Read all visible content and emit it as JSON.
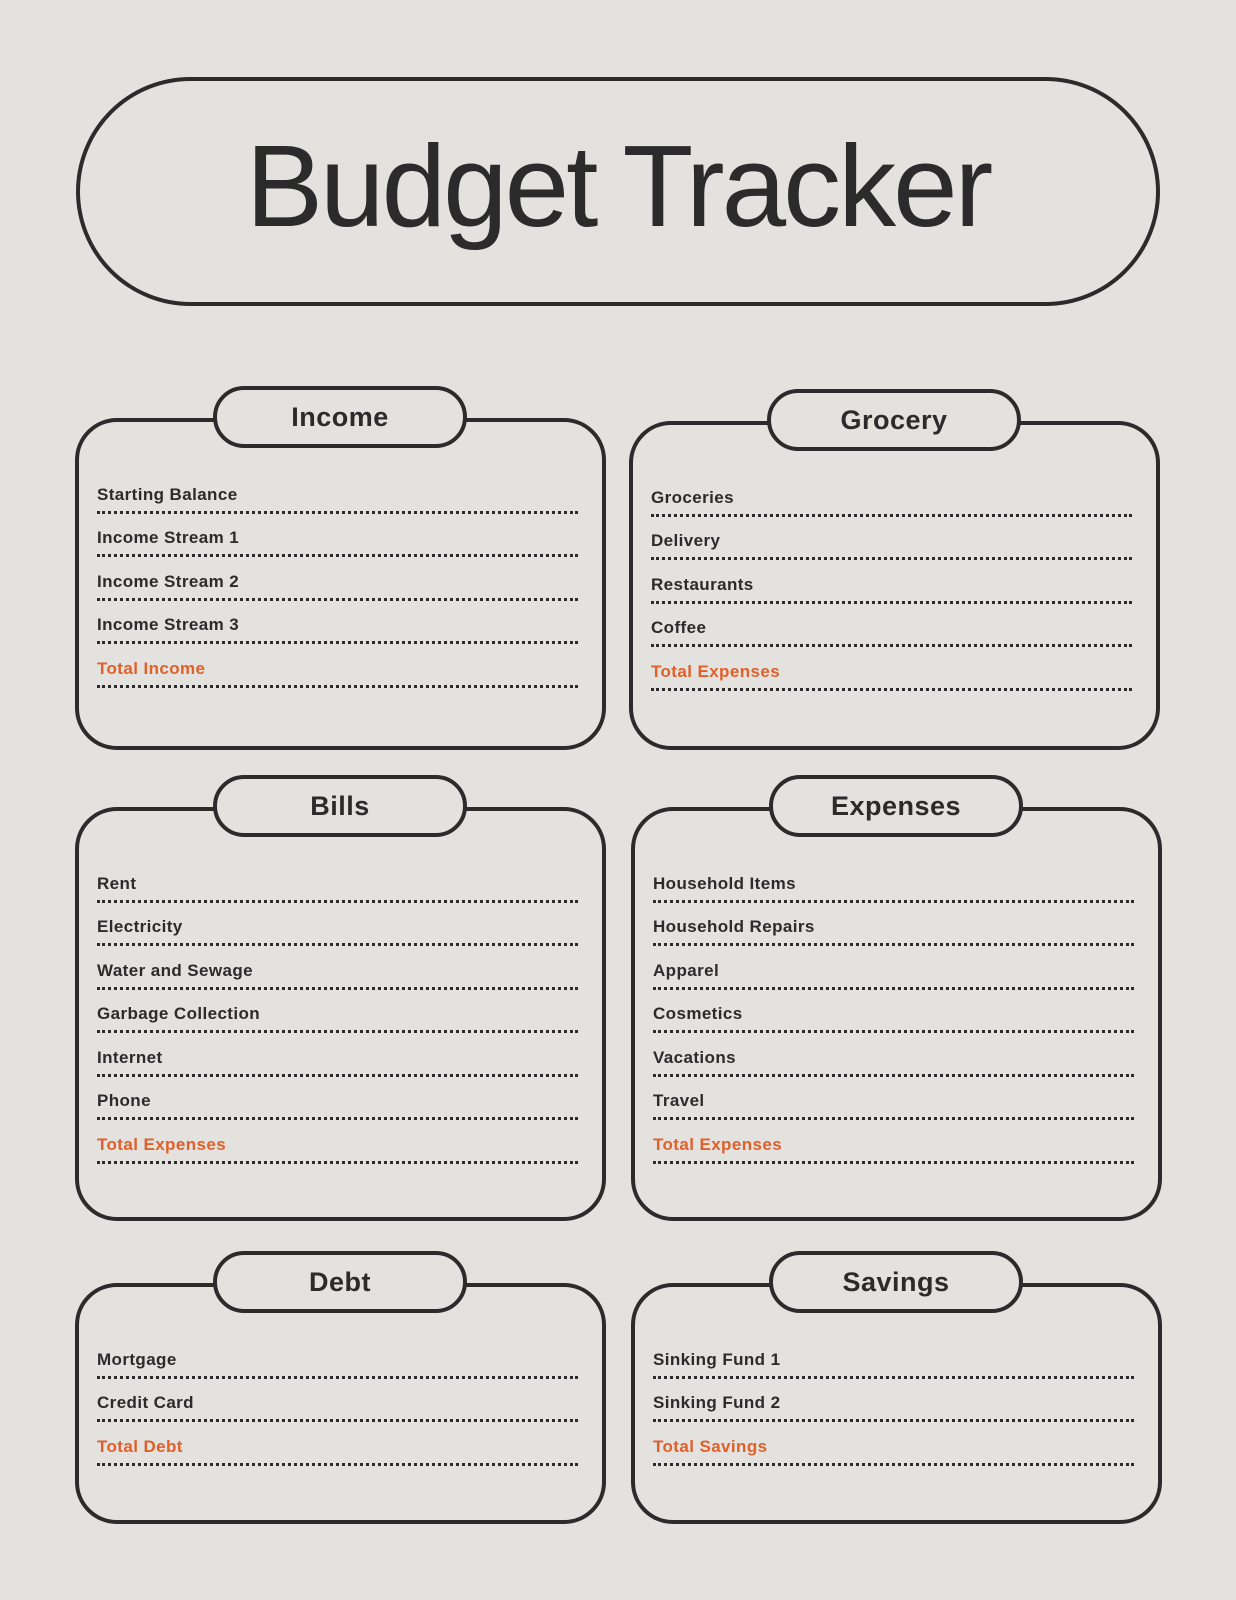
{
  "title": "Budget Tracker",
  "colors": {
    "background": "#e4e2de",
    "ink": "#2b2b2b",
    "accent": "#e0602a"
  },
  "sections": {
    "income": {
      "heading": "Income",
      "items": [
        "Starting Balance",
        "Income Stream 1",
        "Income Stream 2",
        "Income Stream 3"
      ],
      "total": "Total Income"
    },
    "grocery": {
      "heading": "Grocery",
      "items": [
        "Groceries",
        "Delivery",
        "Restaurants",
        "Coffee"
      ],
      "total": "Total Expenses"
    },
    "bills": {
      "heading": "Bills",
      "items": [
        "Rent",
        "Electricity",
        "Water and Sewage",
        "Garbage Collection",
        "Internet",
        "Phone"
      ],
      "total": "Total Expenses"
    },
    "expenses": {
      "heading": "Expenses",
      "items": [
        "Household Items",
        "Household Repairs",
        "Apparel",
        "Cosmetics",
        "Vacations",
        "Travel"
      ],
      "total": "Total Expenses"
    },
    "debt": {
      "heading": "Debt",
      "items": [
        "Mortgage",
        "Credit Card"
      ],
      "total": "Total Debt"
    },
    "savings": {
      "heading": "Savings",
      "items": [
        "Sinking Fund 1",
        "Sinking Fund 2"
      ],
      "total": "Total Savings"
    }
  }
}
